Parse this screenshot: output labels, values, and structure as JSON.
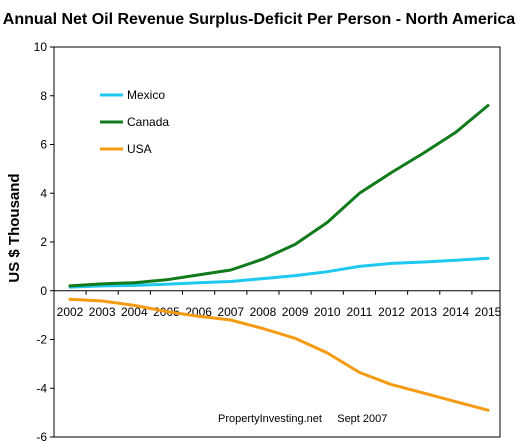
{
  "chart_data": {
    "type": "line",
    "title": "Annual Net Oil Revenue Surplus-Deficit Per Person - North America",
    "xlabel": "",
    "ylabel": "US $ Thousand",
    "x": [
      "2002",
      "2003",
      "2004",
      "2005",
      "2006",
      "2007",
      "2008",
      "2009",
      "2010",
      "2011",
      "2012",
      "2013",
      "2014",
      "2015"
    ],
    "ylim": [
      -6,
      10
    ],
    "yticks": [
      "-6",
      "-4",
      "-2",
      "0",
      "2",
      "4",
      "6",
      "8",
      "10"
    ],
    "grid": false,
    "legend_position": "top-left",
    "series": [
      {
        "name": "Mexico",
        "color": "#1fc8f0",
        "values": [
          0.15,
          0.2,
          0.22,
          0.27,
          0.33,
          0.38,
          0.5,
          0.62,
          0.78,
          1.0,
          1.12,
          1.18,
          1.25,
          1.33
        ]
      },
      {
        "name": "Canada",
        "color": "#117a1a",
        "values": [
          0.2,
          0.28,
          0.33,
          0.45,
          0.65,
          0.85,
          1.3,
          1.9,
          2.8,
          4.0,
          4.85,
          5.65,
          6.5,
          7.6
        ]
      },
      {
        "name": "USA",
        "color": "#f59b12",
        "values": [
          -0.35,
          -0.42,
          -0.6,
          -0.85,
          -1.05,
          -1.2,
          -1.55,
          -1.95,
          -2.55,
          -3.35,
          -3.85,
          -4.2,
          -4.55,
          -4.9
        ]
      }
    ],
    "annotation": "PropertyInvesting.net     Sept 2007"
  }
}
